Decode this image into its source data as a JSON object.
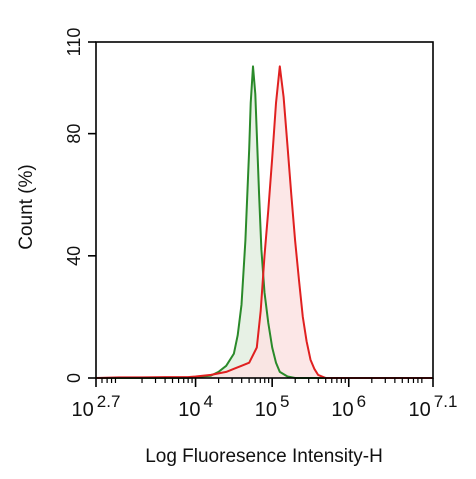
{
  "chart_data": {
    "type": "area",
    "title": "",
    "xlabel": "Log Fluoresence Intensity-H",
    "ylabel": "Count  (%)",
    "x_scale": "log10",
    "xlim_log10": [
      2.7,
      7.1
    ],
    "ylim": [
      0,
      110
    ],
    "x_ticks": [
      {
        "base": "10",
        "exp": "2.7",
        "log": 2.7
      },
      {
        "base": "10",
        "exp": "4",
        "log": 4
      },
      {
        "base": "10",
        "exp": "5",
        "log": 5
      },
      {
        "base": "10",
        "exp": "6",
        "log": 6
      },
      {
        "base": "10",
        "exp": "7.1",
        "log": 7.1
      }
    ],
    "y_ticks": [
      "0",
      "40",
      "80",
      "110"
    ],
    "y_tick_values": [
      0,
      40,
      80,
      110
    ],
    "grid": false,
    "legend": "none",
    "series": [
      {
        "color": "#2a8a2a",
        "fill": "#e3efe0",
        "log_x": [
          2.7,
          3.0,
          3.3,
          3.6,
          3.9,
          4.0,
          4.2,
          4.3,
          4.4,
          4.5,
          4.55,
          4.6,
          4.65,
          4.7,
          4.72,
          4.75,
          4.78,
          4.8,
          4.83,
          4.86,
          4.9,
          4.95,
          5.0,
          5.05,
          5.1,
          5.2,
          5.3,
          7.1
        ],
        "y": [
          0,
          0,
          0,
          0,
          0,
          0.3,
          0.8,
          2,
          4,
          8,
          14,
          24,
          45,
          75,
          90,
          102,
          93,
          80,
          60,
          42,
          28,
          18,
          10,
          5,
          2,
          0.5,
          0,
          0
        ]
      },
      {
        "color": "#e02020",
        "fill": "#fbe3e3",
        "log_x": [
          2.7,
          3.0,
          3.3,
          3.6,
          3.9,
          4.0,
          4.2,
          4.4,
          4.5,
          4.6,
          4.7,
          4.8,
          4.85,
          4.9,
          4.95,
          5.0,
          5.05,
          5.1,
          5.15,
          5.2,
          5.25,
          5.3,
          5.35,
          5.4,
          5.45,
          5.5,
          5.55,
          5.6,
          5.7,
          7.1
        ],
        "y": [
          0,
          0.2,
          0.2,
          0.3,
          0.3,
          0.5,
          1,
          2,
          3,
          4,
          5,
          10,
          22,
          40,
          55,
          72,
          90,
          102,
          92,
          76,
          60,
          45,
          32,
          20,
          12,
          6,
          3,
          1,
          0,
          0
        ]
      }
    ]
  }
}
